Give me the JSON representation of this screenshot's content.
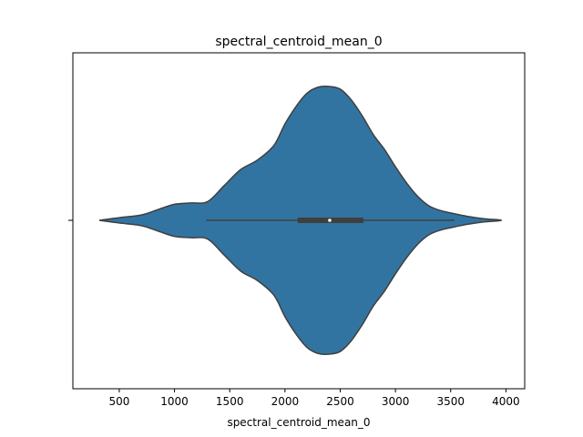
{
  "chart_data": {
    "type": "violin",
    "title": "spectral_centroid_mean_0",
    "xlabel": "spectral_centroid_mean_0",
    "ylabel": "",
    "xlim": [
      80,
      4170
    ],
    "xticks": [
      500,
      1000,
      1500,
      2000,
      2500,
      3000,
      3500,
      4000
    ],
    "fill_color": "#3274a1",
    "edge_color": "#3f3f3f",
    "density_profile": [
      [
        320,
        0.0
      ],
      [
        500,
        0.02
      ],
      [
        700,
        0.04
      ],
      [
        850,
        0.08
      ],
      [
        1000,
        0.12
      ],
      [
        1150,
        0.13
      ],
      [
        1300,
        0.14
      ],
      [
        1450,
        0.26
      ],
      [
        1600,
        0.38
      ],
      [
        1750,
        0.45
      ],
      [
        1900,
        0.56
      ],
      [
        2000,
        0.72
      ],
      [
        2100,
        0.85
      ],
      [
        2200,
        0.95
      ],
      [
        2300,
        0.995
      ],
      [
        2400,
        1.0
      ],
      [
        2500,
        0.98
      ],
      [
        2600,
        0.9
      ],
      [
        2700,
        0.78
      ],
      [
        2800,
        0.64
      ],
      [
        2900,
        0.53
      ],
      [
        3000,
        0.4
      ],
      [
        3100,
        0.28
      ],
      [
        3200,
        0.18
      ],
      [
        3300,
        0.11
      ],
      [
        3400,
        0.075
      ],
      [
        3500,
        0.055
      ],
      [
        3650,
        0.03
      ],
      [
        3800,
        0.012
      ],
      [
        3960,
        0.0
      ]
    ],
    "box": {
      "whisker_low": 1285,
      "q1": 2115,
      "median": 2405,
      "q3": 2710,
      "whisker_high": 3535
    }
  }
}
